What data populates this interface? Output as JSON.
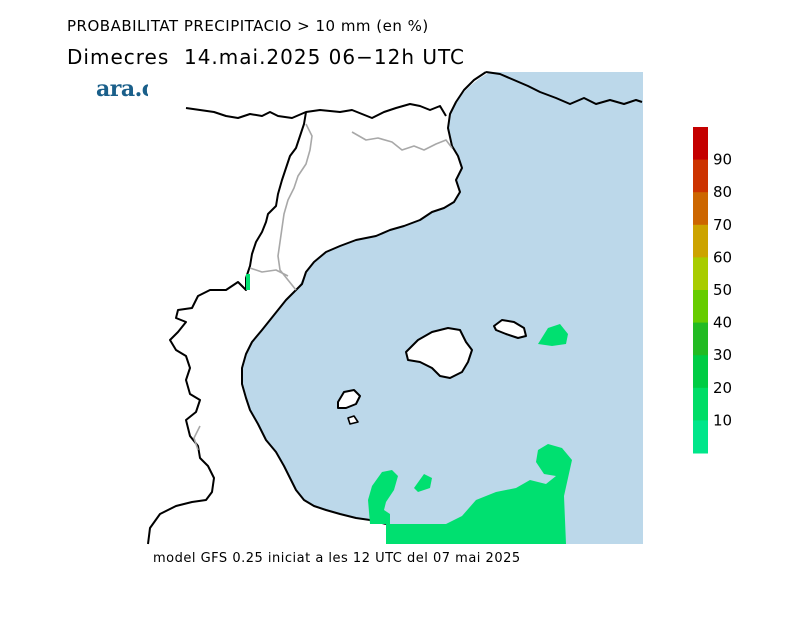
{
  "title_line1": "PROBABILITAT PRECIPITACIO > 10 mm (en %)",
  "title_line2": "Dimecres  14.mai.2025 06−12h UTC",
  "logo_text": "ara.cat",
  "footer": "model GFS 0.25 iniciat a les 12 UTC del 07 mai 2025",
  "colors": {
    "sea": "#bcd8ea",
    "land": "#ffffff",
    "coast": "#000000",
    "border": "#a8a8a8",
    "precip": "#00e070",
    "logo": "#1a5f8a"
  },
  "legend": {
    "ticks": [
      "90",
      "80",
      "70",
      "60",
      "50",
      "40",
      "30",
      "20",
      "10"
    ],
    "colors": [
      "#c40000",
      "#cc3300",
      "#cc6600",
      "#cca300",
      "#a8cc00",
      "#66cc00",
      "#22bb22",
      "#00cc44",
      "#00dd66",
      "#00e68a"
    ]
  }
}
